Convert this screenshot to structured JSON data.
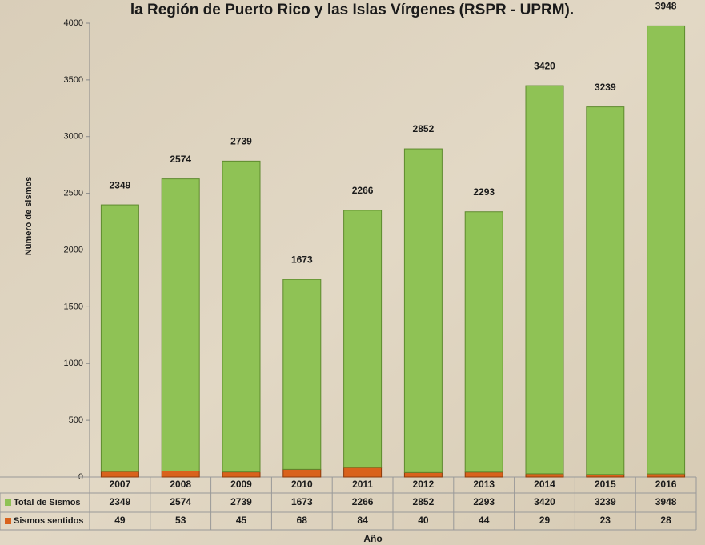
{
  "chart_data": {
    "type": "bar",
    "stacked": true,
    "title": "la Región de Puerto Rico y las Islas Vírgenes (RSPR - UPRM).",
    "y_label": "Número de sismos",
    "x_label": "Año",
    "categories": [
      "2007",
      "2008",
      "2009",
      "2010",
      "2011",
      "2012",
      "2013",
      "2014",
      "2015",
      "2016"
    ],
    "series": [
      {
        "name": "Sismos sentidos",
        "color": "#d9621c",
        "values": [
          49,
          53,
          45,
          68,
          84,
          40,
          44,
          29,
          23,
          28
        ]
      },
      {
        "name": "Total de Sismos",
        "color": "#8fc255",
        "values": [
          2349,
          2574,
          2739,
          1673,
          2266,
          2852,
          2293,
          3420,
          3239,
          3948
        ]
      }
    ],
    "ylim": [
      0,
      4000
    ],
    "yticks": [
      0,
      500,
      1000,
      1500,
      2000,
      2500,
      3000,
      3500,
      4000
    ],
    "grid": false
  }
}
